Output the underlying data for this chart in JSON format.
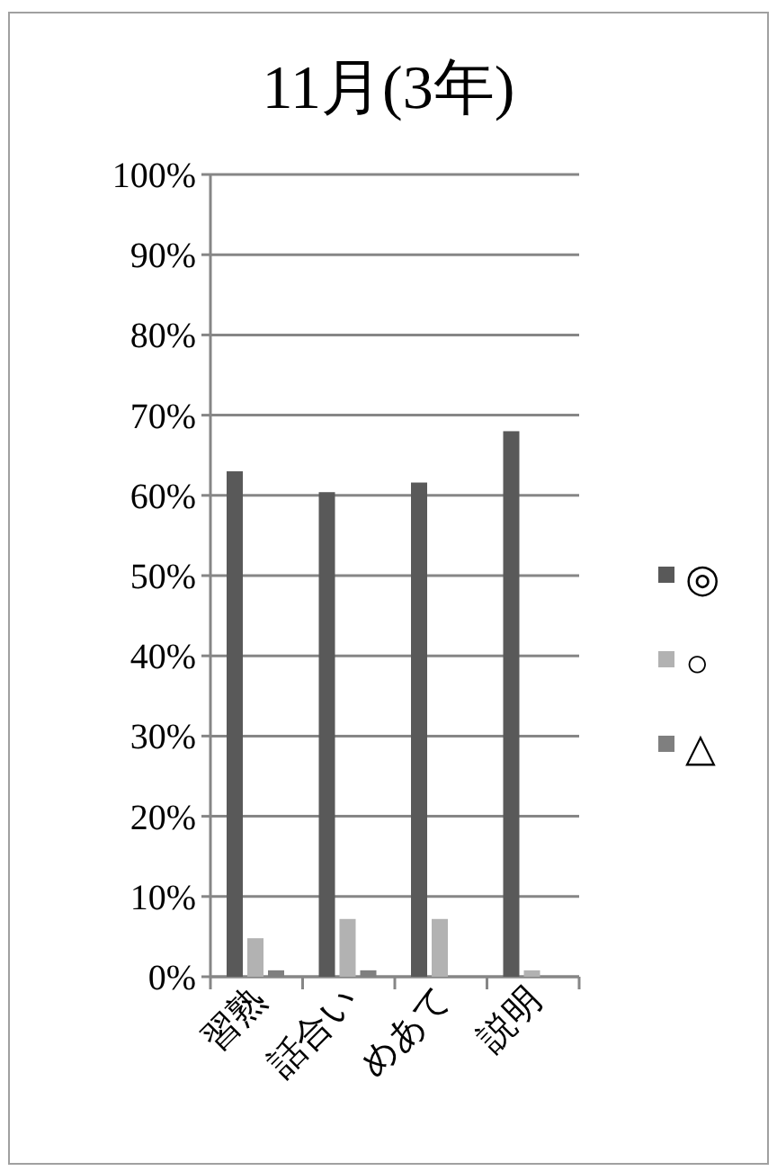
{
  "chart_data": {
    "type": "bar",
    "title": "11月(3年)",
    "categories": [
      "習熟",
      "話合い",
      "めあて",
      "説明"
    ],
    "series": [
      {
        "name": "◎",
        "color": "#595959",
        "values": [
          63.0,
          60.4,
          61.6,
          68.0
        ]
      },
      {
        "name": "○",
        "color": "#b2b2b2",
        "values": [
          4.8,
          7.2,
          7.2,
          0.8
        ]
      },
      {
        "name": "△",
        "color": "#7f7f7f",
        "values": [
          0.8,
          0.8,
          0,
          0
        ]
      }
    ],
    "ylim": [
      0,
      100
    ],
    "yticks": [
      {
        "value": 0,
        "label": "0%"
      },
      {
        "value": 10,
        "label": "10%"
      },
      {
        "value": 20,
        "label": "20%"
      },
      {
        "value": 30,
        "label": "30%"
      },
      {
        "value": 40,
        "label": "40%"
      },
      {
        "value": 50,
        "label": "50%"
      },
      {
        "value": 60,
        "label": "60%"
      },
      {
        "value": 70,
        "label": "70%"
      },
      {
        "value": 80,
        "label": "80%"
      },
      {
        "value": 90,
        "label": "90%"
      },
      {
        "value": 100,
        "label": "100%"
      }
    ],
    "grid": "y",
    "legend": "right"
  }
}
